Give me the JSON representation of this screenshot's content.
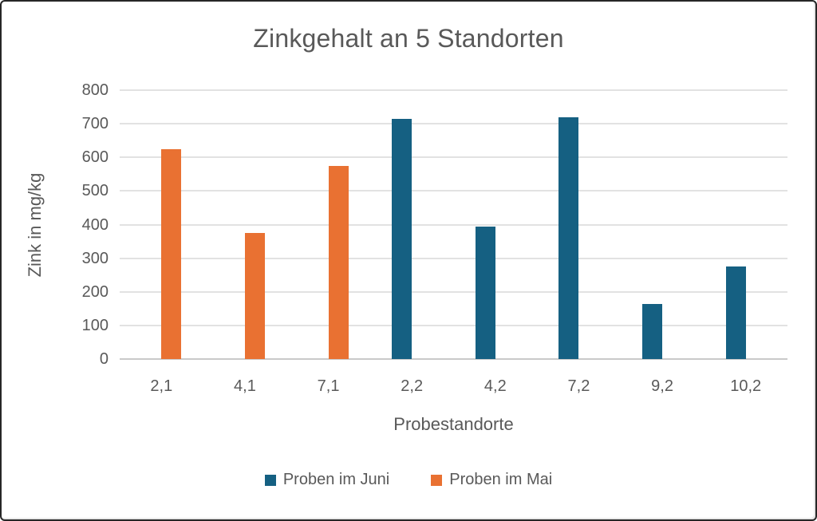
{
  "chart_data": {
    "type": "bar",
    "title": "Zinkgehalt an 5 Standorten",
    "xlabel": "Probestandorte",
    "ylabel": "Zink in mg/kg",
    "categories": [
      "2,1",
      "4,1",
      "7,1",
      "2,2",
      "4,2",
      "7,2",
      "9,2",
      "10,2"
    ],
    "series": [
      {
        "name": "Proben im Juni",
        "color": "#156082",
        "values": [
          null,
          null,
          null,
          715,
          395,
          720,
          165,
          275
        ]
      },
      {
        "name": "Proben im Mai",
        "color": "#E97132",
        "values": [
          625,
          375,
          575,
          null,
          null,
          null,
          null,
          null
        ]
      }
    ],
    "ylim": [
      0,
      800
    ],
    "ytick_step": 100,
    "grid": "horizontal-only",
    "legend_position": "bottom",
    "colors": {
      "text": "#595959",
      "gridline": "#E2E2E2",
      "axis_line": "#C9C9C9",
      "background": "#FFFFFF",
      "frame_border": "#262626"
    }
  }
}
